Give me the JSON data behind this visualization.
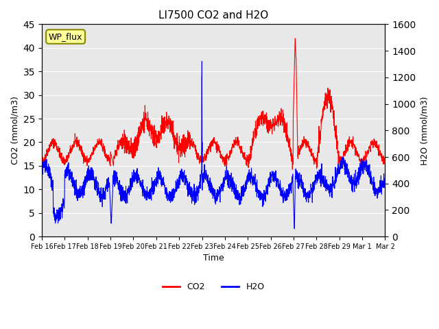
{
  "title": "LI7500 CO2 and H2O",
  "xlabel": "Time",
  "ylabel_left": "CO2 (mmol/m3)",
  "ylabel_right": "H2O (mmol/m3)",
  "annotation": "WP_flux",
  "ylim_left": [
    0,
    45
  ],
  "ylim_right": [
    0,
    1600
  ],
  "yticks_left": [
    0,
    5,
    10,
    15,
    20,
    25,
    30,
    35,
    40,
    45
  ],
  "yticks_right": [
    0,
    200,
    400,
    600,
    800,
    1000,
    1200,
    1400,
    1600
  ],
  "xtick_labels": [
    "Feb 16",
    "Feb 17",
    "Feb 18",
    "Feb 19",
    "Feb 20",
    "Feb 21",
    "Feb 22",
    "Feb 23",
    "Feb 24",
    "Feb 25",
    "Feb 26",
    "Feb 27",
    "Feb 28",
    "Feb 29",
    "Mar 1",
    "Mar 2"
  ],
  "co2_color": "#FF0000",
  "h2o_color": "#0000FF",
  "bg_color": "#E8E8E8",
  "legend_co2": "CO2",
  "legend_h2o": "H2O"
}
